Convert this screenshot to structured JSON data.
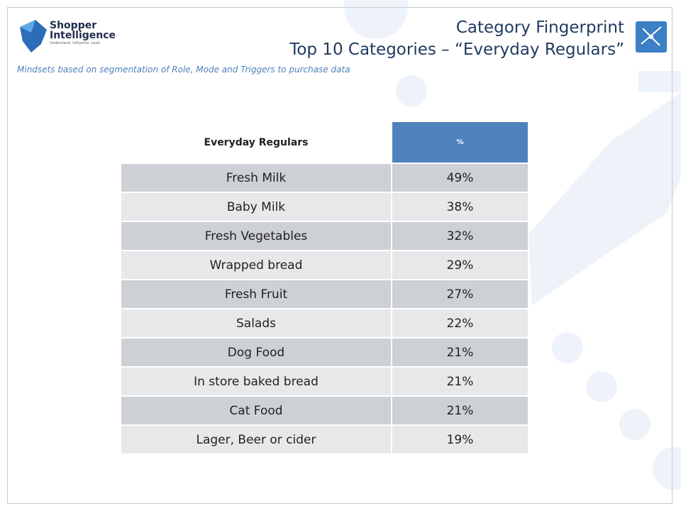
{
  "header": {
    "logo_name": "Shopper Intelligence",
    "logo_tagline": "Understand. Influence. Lead.",
    "title": "Category Fingerprint",
    "subtitle": "Top 10 Categories – “Everyday Regulars”",
    "note": "Mindsets based on segmentation of Role, Mode and Triggers to purchase data"
  },
  "table": {
    "columns": [
      "Everyday Regulars",
      "%"
    ],
    "rows": [
      [
        "Fresh Milk",
        "49%"
      ],
      [
        "Baby Milk",
        "38%"
      ],
      [
        "Fresh Vegetables",
        "32%"
      ],
      [
        "Wrapped bread",
        "29%"
      ],
      [
        "Fresh Fruit",
        "27%"
      ],
      [
        "Salads",
        "22%"
      ],
      [
        "Dog Food",
        "21%"
      ],
      [
        "In store baked bread",
        "21%"
      ],
      [
        "Cat Food",
        "21%"
      ],
      [
        "Lager, Beer or cider",
        "19%"
      ]
    ]
  }
}
